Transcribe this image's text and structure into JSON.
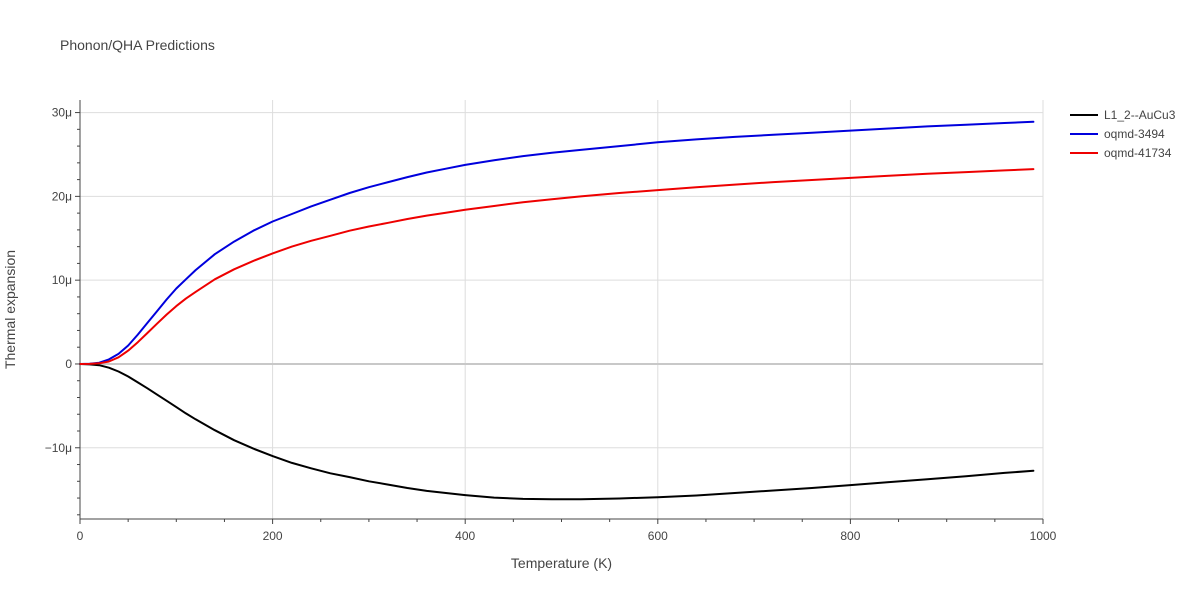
{
  "chart_data": {
    "type": "line",
    "title": "Phonon/QHA Predictions",
    "xlabel": "Temperature (K)",
    "ylabel": "Thermal expansion",
    "xlim": [
      0,
      1000
    ],
    "ylim": [
      -18.5,
      31.5
    ],
    "x_ticks": [
      0,
      200,
      400,
      600,
      800,
      1000
    ],
    "x_tick_labels": [
      "0",
      "200",
      "400",
      "600",
      "800",
      "1000"
    ],
    "y_ticks": [
      -10,
      0,
      10,
      20,
      30
    ],
    "y_tick_labels": [
      "−10μ",
      "0",
      "10μ",
      "20μ",
      "30μ"
    ],
    "grid": true,
    "legend_position": "top-right",
    "series": [
      {
        "name": "L1_2--AuCu3",
        "color": "#000000",
        "x": [
          0,
          10,
          20,
          30,
          40,
          50,
          60,
          70,
          80,
          90,
          100,
          110,
          120,
          140,
          160,
          180,
          200,
          220,
          240,
          260,
          280,
          300,
          320,
          340,
          360,
          380,
          400,
          430,
          460,
          490,
          520,
          560,
          600,
          640,
          680,
          720,
          760,
          800,
          840,
          880,
          920,
          960,
          990
        ],
        "y": [
          0,
          -0.05,
          -0.15,
          -0.45,
          -0.9,
          -1.5,
          -2.2,
          -2.9,
          -3.65,
          -4.4,
          -5.15,
          -5.9,
          -6.6,
          -7.9,
          -9.1,
          -10.1,
          -11.0,
          -11.8,
          -12.45,
          -13.05,
          -13.5,
          -14.0,
          -14.4,
          -14.8,
          -15.15,
          -15.4,
          -15.65,
          -15.95,
          -16.1,
          -16.15,
          -16.15,
          -16.05,
          -15.9,
          -15.7,
          -15.4,
          -15.1,
          -14.8,
          -14.45,
          -14.1,
          -13.75,
          -13.4,
          -13.0,
          -12.75
        ]
      },
      {
        "name": "oqmd-3494",
        "color": "#0000dd",
        "x": [
          0,
          10,
          20,
          30,
          40,
          50,
          60,
          70,
          80,
          90,
          100,
          110,
          120,
          140,
          160,
          180,
          200,
          220,
          240,
          260,
          280,
          300,
          320,
          340,
          360,
          380,
          400,
          430,
          460,
          490,
          520,
          560,
          600,
          640,
          680,
          720,
          760,
          800,
          840,
          880,
          920,
          960,
          990
        ],
        "y": [
          0,
          0.02,
          0.15,
          0.55,
          1.2,
          2.2,
          3.5,
          4.9,
          6.3,
          7.7,
          9.0,
          10.1,
          11.2,
          13.1,
          14.6,
          15.9,
          17.0,
          17.9,
          18.8,
          19.6,
          20.4,
          21.1,
          21.7,
          22.3,
          22.85,
          23.3,
          23.75,
          24.3,
          24.8,
          25.2,
          25.55,
          26.0,
          26.45,
          26.8,
          27.1,
          27.35,
          27.6,
          27.85,
          28.1,
          28.35,
          28.55,
          28.75,
          28.9
        ]
      },
      {
        "name": "oqmd-41734",
        "color": "#ee0000",
        "x": [
          0,
          10,
          20,
          30,
          40,
          50,
          60,
          70,
          80,
          90,
          100,
          110,
          120,
          140,
          160,
          180,
          200,
          220,
          240,
          260,
          280,
          300,
          320,
          340,
          360,
          380,
          400,
          430,
          460,
          490,
          520,
          560,
          600,
          640,
          680,
          720,
          760,
          800,
          840,
          880,
          920,
          960,
          990
        ],
        "y": [
          0,
          0.01,
          0.08,
          0.3,
          0.8,
          1.6,
          2.6,
          3.7,
          4.8,
          5.9,
          6.9,
          7.8,
          8.6,
          10.1,
          11.3,
          12.3,
          13.2,
          14.0,
          14.7,
          15.3,
          15.9,
          16.4,
          16.85,
          17.3,
          17.7,
          18.05,
          18.4,
          18.85,
          19.3,
          19.65,
          20.0,
          20.4,
          20.75,
          21.1,
          21.4,
          21.7,
          21.95,
          22.2,
          22.45,
          22.7,
          22.9,
          23.1,
          23.25
        ]
      }
    ]
  }
}
